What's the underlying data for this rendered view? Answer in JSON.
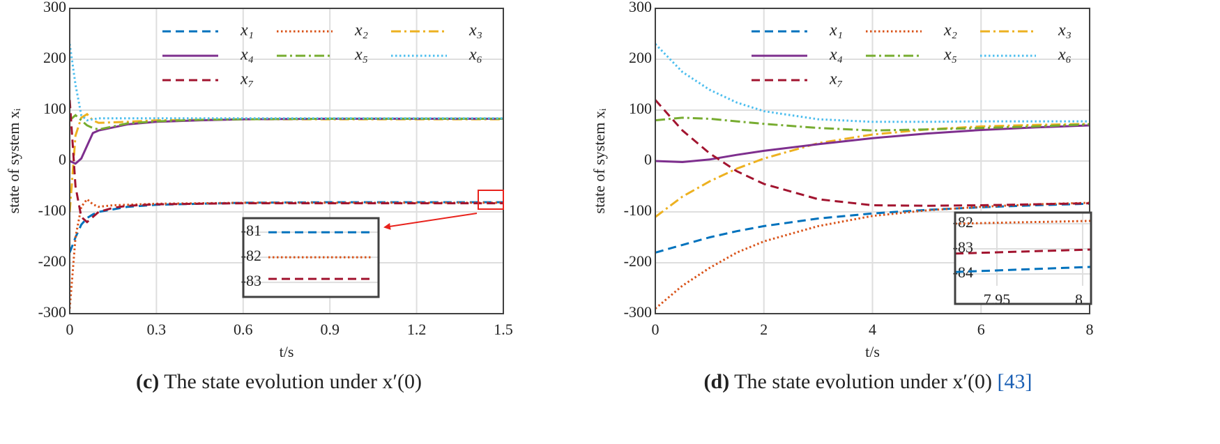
{
  "charts": [
    {
      "type": "line",
      "x_label": "t/s",
      "y_label": "state of system xᵢ",
      "caption": {
        "label": "(c)",
        "text": "The state evolution under x′(0)"
      },
      "xlim": [
        0,
        1.5
      ],
      "xticks": [
        0,
        0.3,
        0.6,
        0.9,
        1.2,
        1.5
      ],
      "ylim": [
        -300,
        300
      ],
      "yticks": [
        -300,
        -200,
        -100,
        0,
        100,
        200,
        300
      ],
      "grid": true,
      "x": [
        0,
        0.02,
        0.04,
        0.06,
        0.08,
        0.1,
        0.15,
        0.2,
        0.3,
        0.45,
        0.6,
        0.9,
        1.2,
        1.5
      ],
      "series": [
        {
          "name": "x₁",
          "color": "#0072bd",
          "dash": "dashed",
          "values": [
            -180,
            -150,
            -125,
            -112,
            -105,
            -100,
            -95,
            -90,
            -86,
            -84,
            -82,
            -81,
            -81,
            -81
          ]
        },
        {
          "name": "x₂",
          "color": "#d95319",
          "dash": "dotted",
          "values": [
            -290,
            -150,
            -90,
            -75,
            -85,
            -90,
            -87,
            -86,
            -84,
            -83,
            -82,
            -82,
            -82,
            -82
          ]
        },
        {
          "name": "x₃",
          "color": "#edb120",
          "dash": "dashdot",
          "values": [
            -100,
            50,
            85,
            92,
            80,
            75,
            76,
            77,
            80,
            81,
            82,
            82,
            82,
            82
          ]
        },
        {
          "name": "x₄",
          "color": "#7e2f8e",
          "dash": "solid",
          "values": [
            0,
            -5,
            5,
            30,
            55,
            60,
            66,
            72,
            77,
            80,
            82,
            83,
            83,
            83
          ]
        },
        {
          "name": "x₅",
          "color": "#77ac30",
          "dash": "dashdot",
          "values": [
            80,
            90,
            80,
            70,
            65,
            62,
            68,
            74,
            78,
            81,
            82,
            83,
            83,
            83
          ]
        },
        {
          "name": "x₆",
          "color": "#4dbeee",
          "dash": "dotted",
          "values": [
            230,
            150,
            90,
            80,
            82,
            84,
            84,
            84,
            84,
            84,
            84,
            84,
            84,
            84
          ]
        },
        {
          "name": "x₇",
          "color": "#a2142f",
          "dash": "dashed",
          "values": [
            120,
            -50,
            -110,
            -120,
            -110,
            -100,
            -92,
            -88,
            -85,
            -84,
            -83,
            -83,
            -83,
            -83
          ]
        }
      ],
      "inset": {
        "ylim": [
          -83.58,
          -80.44
        ],
        "yticks": [
          -81,
          -82,
          -83
        ],
        "series_values": [
          [
            -81,
            -81
          ],
          [
            -82,
            -82
          ],
          [
            -82.86,
            -82.86
          ]
        ],
        "series_index": [
          0,
          1,
          6
        ]
      }
    },
    {
      "type": "line",
      "x_label": "t/s",
      "y_label": "state of system xᵢ",
      "caption": {
        "label": "(d)",
        "text": "The state evolution under x′(0)",
        "ref": "[43]"
      },
      "xlim": [
        0,
        8
      ],
      "xticks": [
        0,
        2,
        4,
        6,
        8
      ],
      "ylim": [
        -300,
        300
      ],
      "yticks": [
        -300,
        -200,
        -100,
        0,
        100,
        200,
        300
      ],
      "grid": true,
      "x": [
        0,
        0.5,
        1,
        1.5,
        2,
        3,
        4,
        5,
        6,
        7,
        8
      ],
      "series": [
        {
          "name": "x₁",
          "color": "#0072bd",
          "dash": "dashed",
          "values": [
            -180,
            -165,
            -150,
            -138,
            -128,
            -113,
            -103,
            -96,
            -91,
            -87,
            -84
          ]
        },
        {
          "name": "x₂",
          "color": "#d95319",
          "dash": "dotted",
          "values": [
            -290,
            -245,
            -210,
            -180,
            -158,
            -128,
            -108,
            -97,
            -90,
            -85,
            -82
          ]
        },
        {
          "name": "x₃",
          "color": "#edb120",
          "dash": "dashdot",
          "values": [
            -110,
            -70,
            -40,
            -15,
            5,
            35,
            52,
            62,
            68,
            71,
            73
          ]
        },
        {
          "name": "x₄",
          "color": "#7e2f8e",
          "dash": "solid",
          "values": [
            0,
            -2,
            3,
            12,
            20,
            33,
            45,
            54,
            61,
            66,
            70
          ]
        },
        {
          "name": "x₅",
          "color": "#77ac30",
          "dash": "dashdot",
          "values": [
            80,
            85,
            83,
            78,
            73,
            65,
            60,
            62,
            65,
            68,
            72
          ]
        },
        {
          "name": "x₆",
          "color": "#4dbeee",
          "dash": "dotted",
          "values": [
            230,
            175,
            140,
            115,
            98,
            82,
            77,
            77,
            78,
            78,
            78
          ]
        },
        {
          "name": "x₇",
          "color": "#a2142f",
          "dash": "dashed",
          "values": [
            120,
            60,
            15,
            -20,
            -45,
            -75,
            -87,
            -88,
            -87,
            -85,
            -83
          ]
        }
      ],
      "inset": {
        "xlim": [
          7.9256,
          8.0049
        ],
        "xticks": [
          7.95,
          8
        ],
        "x": [
          7.9256,
          8.0049
        ],
        "ylim": [
          -84.47,
          -81.56
        ],
        "yticks": [
          -82,
          -83,
          -84
        ],
        "series_values": [
          [
            -82,
            -81.89
          ],
          [
            -83.19,
            -83.03
          ],
          [
            -83.92,
            -83.72
          ]
        ],
        "series_index": [
          1,
          6,
          0
        ]
      }
    }
  ]
}
